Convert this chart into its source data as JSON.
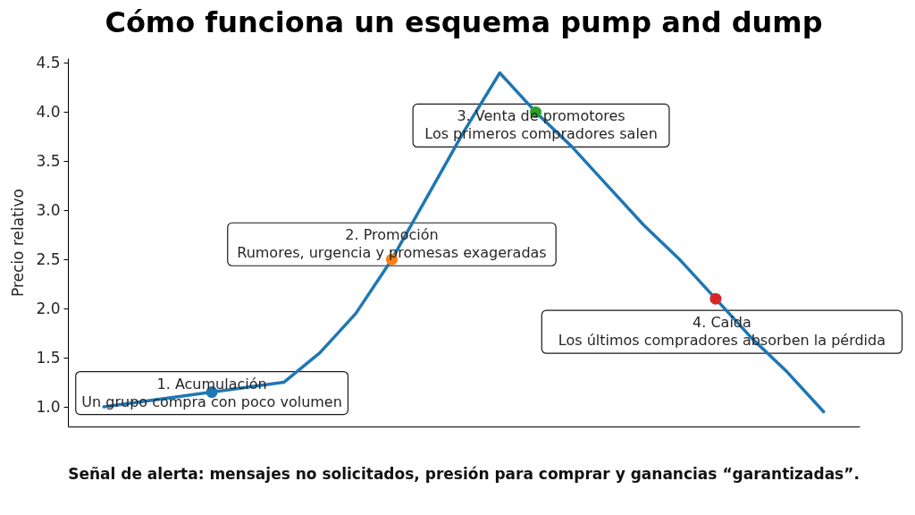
{
  "chart_data": {
    "type": "line",
    "title": "Cómo funciona un esquema pump and dump",
    "ylabel": "Precio relativo",
    "categories": [
      null,
      null,
      null,
      null,
      null,
      null,
      null,
      null,
      null,
      null,
      null,
      null,
      null,
      null,
      null,
      null,
      null,
      null,
      null,
      null,
      null
    ],
    "series": [
      {
        "color": "#1f77b4",
        "values": [
          1.0,
          1.05,
          1.1,
          1.15,
          1.2,
          1.25,
          1.55,
          1.95,
          2.5,
          3.15,
          3.8,
          4.4,
          4.0,
          3.65,
          3.25,
          2.85,
          2.5,
          2.1,
          1.7,
          1.35,
          0.95
        ]
      },
      {
        "type": "scatter",
        "marker": "circle",
        "colors": [
          null,
          null,
          null,
          "#1f77b4",
          null,
          null,
          null,
          null,
          "#ff7f0e",
          null,
          null,
          null,
          "#2ca02c",
          null,
          null,
          null,
          null,
          "#d62728",
          null,
          null,
          null
        ],
        "values": [
          null,
          null,
          null,
          1.15,
          null,
          null,
          null,
          null,
          2.5,
          null,
          null,
          null,
          4.0,
          null,
          null,
          null,
          null,
          2.1,
          null,
          null,
          null
        ]
      }
    ],
    "ylim": [
      0.8,
      4.55
    ],
    "yticks": [
      {
        "value": 1,
        "label": "1.0"
      },
      1.5,
      {
        "value": 2,
        "label": "2.0"
      },
      2.5,
      {
        "value": 3,
        "label": "3.0"
      },
      3.5,
      {
        "value": 4,
        "label": "4.0"
      },
      4.5
    ],
    "tick_labels": "y",
    "annotations": [
      {
        "text": "1. Acumulación\nUn grupo compra con poco volumen",
        "y": 1.15
      },
      {
        "text": "2. Promoción\nRumores, urgencia y promesas exageradas",
        "y": 2.5
      },
      {
        "text": "3. Venta de promotores\nLos primeros compradores salen",
        "y": 4.0
      },
      {
        "text": "4. Caída\nLos últimos compradores absorben la pérdida",
        "y": 2.1
      },
      "Señal de alerta: mensajes no solicitados, presión para comprar y ganancias “garantizadas”."
    ]
  }
}
